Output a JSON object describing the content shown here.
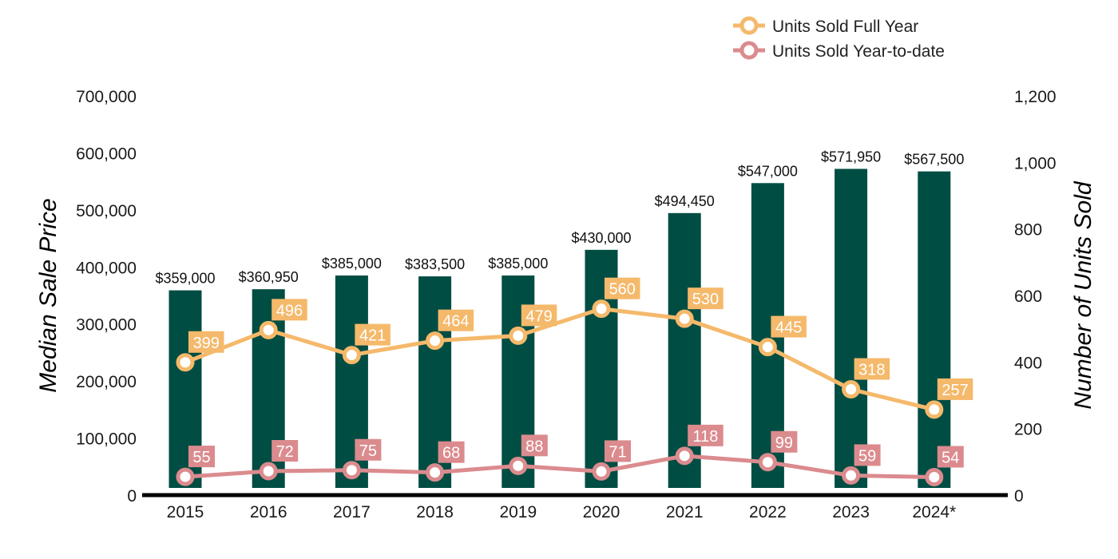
{
  "chart_data": {
    "type": "bar",
    "categories": [
      "2015",
      "2016",
      "2017",
      "2018",
      "2019",
      "2020",
      "2021",
      "2022",
      "2023",
      "2024*"
    ],
    "bar_series": {
      "values": [
        359000,
        360950,
        385000,
        383500,
        385000,
        430000,
        494450,
        547000,
        571950,
        567500
      ],
      "labels": [
        "$359,000",
        "$360,950",
        "$385,000",
        "$383,500",
        "$385,000",
        "$430,000",
        "$494,450",
        "$547,000",
        "$571,950",
        "$567,500"
      ]
    },
    "line_series": [
      {
        "name": "Units Sold Full Year",
        "values": [
          399,
          496,
          421,
          464,
          479,
          560,
          530,
          445,
          318,
          257
        ]
      },
      {
        "name": "Units Sold Year-to-date",
        "values": [
          55,
          72,
          75,
          68,
          88,
          71,
          118,
          99,
          59,
          54
        ]
      }
    ],
    "ylabel": "Median Sale Price",
    "y2label": "Number of Units Sold",
    "ylim": [
      0,
      700000
    ],
    "y2lim": [
      0,
      1200
    ],
    "yticks": [
      0,
      100000,
      200000,
      300000,
      400000,
      500000,
      600000,
      700000
    ],
    "ytick_labels": [
      "0",
      "100,000",
      "200,000",
      "300,000",
      "400,000",
      "500,000",
      "600,000",
      "700,000"
    ],
    "y2ticks": [
      0,
      200,
      400,
      600,
      800,
      1000,
      1200
    ],
    "y2tick_labels": [
      "0",
      "200",
      "400",
      "600",
      "800",
      "1,000",
      "1,200"
    ],
    "legend_position": "top-right",
    "grid": false
  },
  "colors": {
    "bar": "#004d43",
    "full_year": "#f5b96b",
    "ytd": "#db8b8e",
    "axis": "#000000"
  }
}
